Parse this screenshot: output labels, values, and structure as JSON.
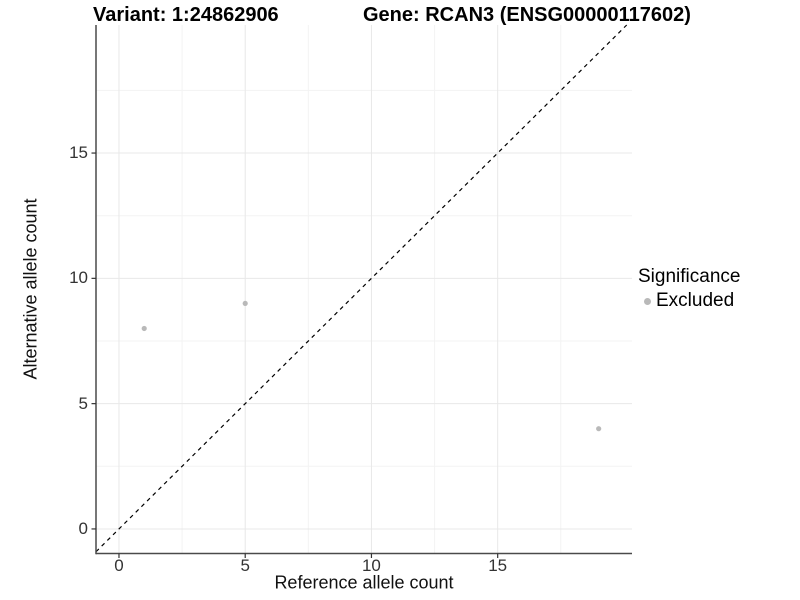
{
  "titles": {
    "variant": "Variant: 1:24862906",
    "gene": "Gene: RCAN3 (ENSG00000117602)"
  },
  "chart_data": {
    "type": "scatter",
    "title": "Variant: 1:24862906 — Gene: RCAN3 (ENSG00000117602)",
    "xlabel": "Reference allele count",
    "ylabel": "Alternative allele count",
    "xlim": [
      -0.91,
      20.32
    ],
    "ylim": [
      -0.98,
      20.11
    ],
    "x_ticks": [
      0,
      5,
      10,
      15
    ],
    "y_ticks": [
      0,
      5,
      10,
      15
    ],
    "x_minor_ticks": [
      2.5,
      7.5,
      12.5,
      17.5
    ],
    "y_minor_ticks": [
      2.5,
      7.5,
      12.5,
      17.5
    ],
    "grid": true,
    "series": [
      {
        "name": "Excluded",
        "points": [
          [
            1,
            8
          ],
          [
            5,
            9
          ],
          [
            19,
            4
          ]
        ]
      }
    ],
    "identity_line": {
      "slope": 1,
      "intercept": 0,
      "style": "dashed"
    },
    "legend": {
      "position": "right",
      "title": "Significance",
      "items": [
        {
          "label": "Excluded",
          "color": "#b9b9b9"
        }
      ]
    }
  },
  "colors": {
    "point": "#b9b9b9",
    "grid_major": "#e8e8e8",
    "grid_minor": "#f3f3f3",
    "axis_line": "#4a4a4a",
    "tick_mark": "#333333",
    "identity_line": "#000000",
    "text": "#000000"
  }
}
